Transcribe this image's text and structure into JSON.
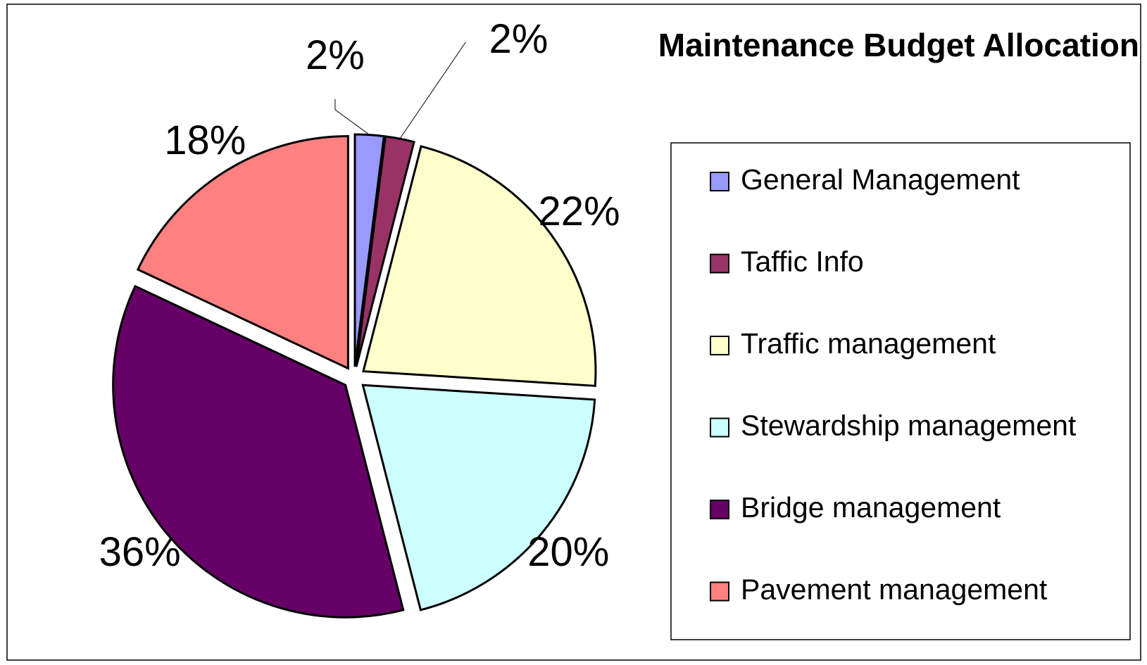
{
  "chart_data": {
    "type": "pie",
    "title": "Maintenance Budget Allocation",
    "categories": [
      "General Management",
      "Taffic Info",
      "Traffic management",
      "Stewardship management",
      "Bridge management",
      "Pavement management"
    ],
    "values": [
      2,
      2,
      22,
      20,
      36,
      18
    ],
    "value_labels": [
      "2%",
      "2%",
      "22%",
      "20%",
      "36%",
      "18%"
    ],
    "colors": [
      "#9999ff",
      "#993366",
      "#ffffcc",
      "#ccffff",
      "#660066",
      "#ff8080"
    ],
    "legend": "right"
  }
}
